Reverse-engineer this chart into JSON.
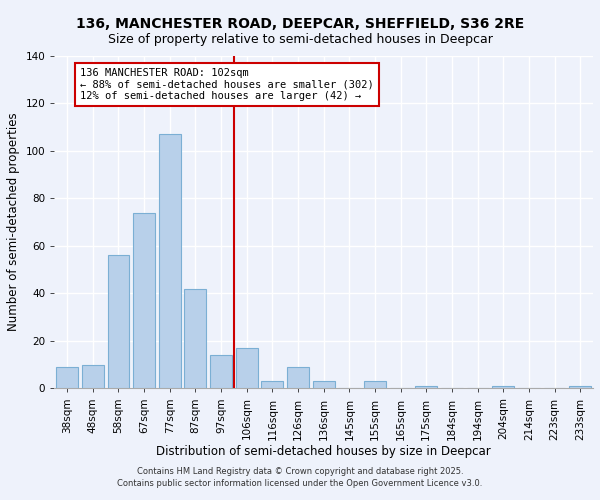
{
  "title": "136, MANCHESTER ROAD, DEEPCAR, SHEFFIELD, S36 2RE",
  "subtitle": "Size of property relative to semi-detached houses in Deepcar",
  "xlabel": "Distribution of semi-detached houses by size in Deepcar",
  "ylabel": "Number of semi-detached properties",
  "categories": [
    "38sqm",
    "48sqm",
    "58sqm",
    "67sqm",
    "77sqm",
    "87sqm",
    "97sqm",
    "106sqm",
    "116sqm",
    "126sqm",
    "136sqm",
    "145sqm",
    "155sqm",
    "165sqm",
    "175sqm",
    "184sqm",
    "194sqm",
    "204sqm",
    "214sqm",
    "223sqm",
    "233sqm"
  ],
  "bar_values": [
    9,
    10,
    56,
    74,
    107,
    42,
    14,
    17,
    3,
    9,
    3,
    0,
    3,
    0,
    1,
    0,
    0,
    1,
    0,
    0,
    1
  ],
  "bar_color": "#b8d0ea",
  "bar_edge_color": "#7bafd4",
  "vline_color": "#cc0000",
  "ylim": [
    0,
    140
  ],
  "yticks": [
    0,
    20,
    40,
    60,
    80,
    100,
    120,
    140
  ],
  "annotation_title": "136 MANCHESTER ROAD: 102sqm",
  "annotation_line1": "← 88% of semi-detached houses are smaller (302)",
  "annotation_line2": "12% of semi-detached houses are larger (42) →",
  "annotation_box_color": "#ffffff",
  "annotation_box_edge": "#cc0000",
  "footer1": "Contains HM Land Registry data © Crown copyright and database right 2025.",
  "footer2": "Contains public sector information licensed under the Open Government Licence v3.0.",
  "bg_color": "#eef2fb",
  "grid_color": "#ffffff",
  "title_fontsize": 10,
  "subtitle_fontsize": 9,
  "axis_label_fontsize": 8.5,
  "tick_fontsize": 7.5,
  "annotation_fontsize": 7.5,
  "footer_fontsize": 6.0
}
